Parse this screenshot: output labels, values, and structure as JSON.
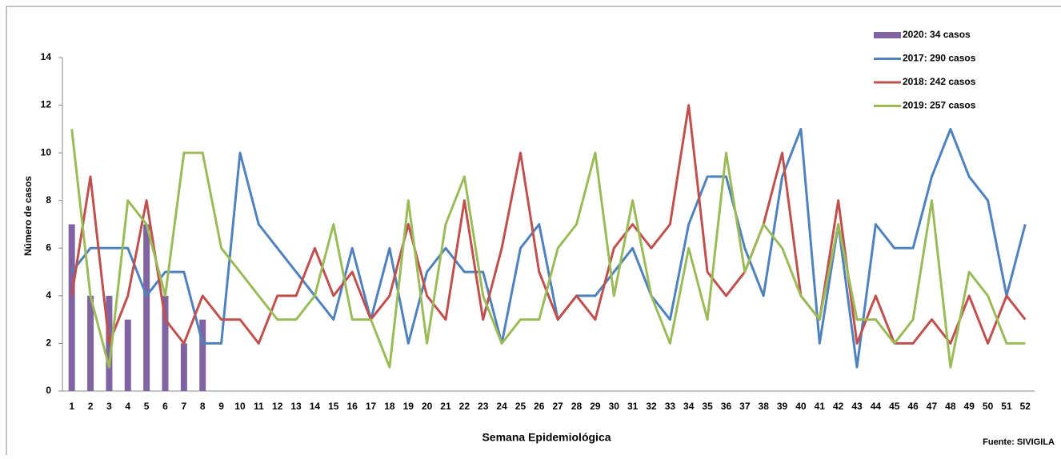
{
  "chart_data": {
    "type": "combo",
    "y_label": "Número de casos",
    "x_label": "Semana Epidemiológica",
    "source": "Fuente: SIVIGILA",
    "categories": [
      1,
      2,
      3,
      4,
      5,
      6,
      7,
      8,
      9,
      10,
      11,
      12,
      13,
      14,
      15,
      16,
      17,
      18,
      19,
      20,
      21,
      22,
      23,
      24,
      25,
      26,
      27,
      28,
      29,
      30,
      31,
      32,
      33,
      34,
      35,
      36,
      37,
      38,
      39,
      40,
      41,
      42,
      43,
      44,
      45,
      46,
      47,
      48,
      49,
      50,
      51,
      52
    ],
    "ylim": [
      0,
      14
    ],
    "yticks": [
      0,
      2,
      4,
      6,
      8,
      10,
      12,
      14
    ],
    "legend": "top-right",
    "series": [
      {
        "name": "2020: 34 casos",
        "type": "bar",
        "color": "#8064a2",
        "values": [
          7,
          4,
          4,
          3,
          7,
          4,
          2,
          3,
          null,
          null,
          null,
          null,
          null,
          null,
          null,
          null,
          null,
          null,
          null,
          null,
          null,
          null,
          null,
          null,
          null,
          null,
          null,
          null,
          null,
          null,
          null,
          null,
          null,
          null,
          null,
          null,
          null,
          null,
          null,
          null,
          null,
          null,
          null,
          null,
          null,
          null,
          null,
          null,
          null,
          null,
          null,
          null
        ]
      },
      {
        "name": "2017: 290 casos",
        "type": "line",
        "color": "#4f81bd",
        "values": [
          5,
          6,
          6,
          6,
          4,
          5,
          5,
          2,
          2,
          10,
          7,
          6,
          5,
          4,
          3,
          6,
          3,
          6,
          2,
          5,
          6,
          5,
          5,
          2,
          6,
          7,
          3,
          4,
          4,
          5,
          6,
          4,
          3,
          7,
          9,
          9,
          6,
          4,
          9,
          11,
          2,
          7,
          1,
          7,
          6,
          6,
          9,
          11,
          9,
          8,
          4,
          7
        ]
      },
      {
        "name": "2018: 242 casos",
        "type": "line",
        "color": "#c0504d",
        "values": [
          4,
          9,
          2,
          4,
          8,
          3,
          2,
          4,
          3,
          3,
          2,
          4,
          4,
          6,
          4,
          5,
          3,
          4,
          7,
          4,
          3,
          8,
          3,
          6,
          10,
          5,
          3,
          4,
          3,
          6,
          7,
          6,
          7,
          12,
          5,
          4,
          5,
          7,
          10,
          4,
          3,
          8,
          2,
          4,
          2,
          2,
          3,
          2,
          4,
          2,
          4,
          3
        ]
      },
      {
        "name": "2019: 257 casos",
        "type": "line",
        "color": "#9bbb59",
        "values": [
          11,
          4,
          1,
          8,
          7,
          4,
          10,
          10,
          6,
          5,
          4,
          3,
          3,
          4,
          7,
          3,
          3,
          1,
          8,
          2,
          7,
          9,
          4,
          2,
          3,
          3,
          6,
          7,
          10,
          4,
          8,
          4,
          2,
          6,
          3,
          10,
          5,
          7,
          6,
          4,
          3,
          7,
          3,
          3,
          2,
          3,
          8,
          1,
          5,
          4,
          2,
          2
        ]
      }
    ]
  }
}
